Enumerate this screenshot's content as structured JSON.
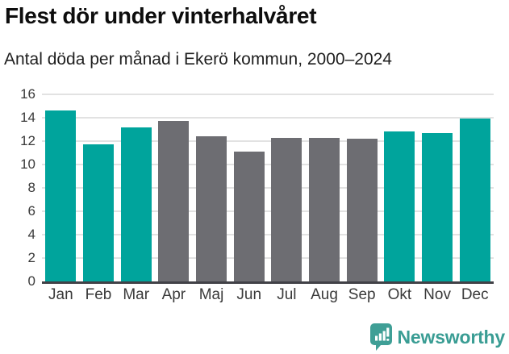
{
  "header": {
    "title": "Flest dör under vinterhalvåret",
    "subtitle": "Antal döda per månad i Ekerö kommun, 2000–2024"
  },
  "chart_data": {
    "type": "bar",
    "title": "Flest dör under vinterhalvåret",
    "subtitle": "Antal döda per månad i Ekerö kommun, 2000–2024",
    "categories": [
      "Jan",
      "Feb",
      "Mar",
      "Apr",
      "Maj",
      "Jun",
      "Jul",
      "Aug",
      "Sep",
      "Okt",
      "Nov",
      "Dec"
    ],
    "values": [
      14.6,
      11.7,
      13.2,
      13.7,
      12.4,
      11.1,
      12.3,
      12.3,
      12.2,
      12.8,
      12.7,
      13.9
    ],
    "highlighted": [
      true,
      true,
      true,
      false,
      false,
      false,
      false,
      false,
      false,
      true,
      true,
      true
    ],
    "palette": {
      "highlight": "#00a49c",
      "base": "#6d6d72",
      "gridline": "#e2e2e2",
      "axis_line": "#414147",
      "tick_label": "#3a3a3a"
    },
    "xlabel": "",
    "ylabel": "",
    "ylim": [
      0,
      16
    ],
    "yticks": [
      0,
      2,
      4,
      6,
      8,
      10,
      12,
      14,
      16
    ],
    "grid": true,
    "legend": "none"
  },
  "footer": {
    "brand": "Newsworthy",
    "brand_color": "#3a9d94",
    "logo_icon": "bar-chart-speech-bubble-icon"
  }
}
